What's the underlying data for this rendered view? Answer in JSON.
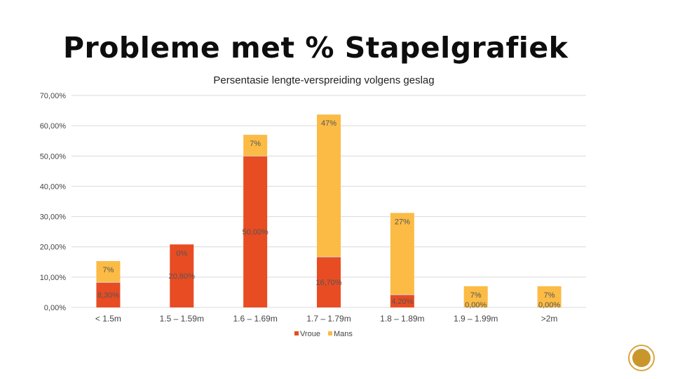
{
  "slide": {
    "title": "Probleme met % Stapelgrafiek"
  },
  "chart_data": {
    "type": "bar",
    "stacked": true,
    "title": "Persentasie lengte-verspreiding volgens geslag",
    "xlabel": "",
    "ylabel": "",
    "categories": [
      "< 1.5m",
      "1.5 – 1.59m",
      "1.6 – 1.69m",
      "1.7 – 1.79m",
      "1.8 – 1.89m",
      "1.9 – 1.99m",
      ">2m"
    ],
    "yticks": [
      "0,00%",
      "10,00%",
      "20,00%",
      "30,00%",
      "40,00%",
      "50,00%",
      "60,00%",
      "70,00%"
    ],
    "ylim": [
      0,
      70
    ],
    "grid": true,
    "legend_position": "bottom",
    "series": [
      {
        "name": "Vroue",
        "color": "#e84c22",
        "values": [
          8.3,
          20.8,
          50.0,
          16.7,
          4.2,
          0,
          0
        ],
        "labels": [
          "8,30%",
          "20,80%",
          "50,00%",
          "16,70%",
          "4,20%",
          "0,00%",
          "0,00%"
        ]
      },
      {
        "name": "Mans",
        "color": "#fbbb45",
        "values": [
          7,
          0,
          7,
          47,
          27,
          7,
          7
        ],
        "labels": [
          "7%",
          "0%",
          "7%",
          "47%",
          "27%",
          "7%",
          "7%"
        ]
      }
    ]
  },
  "decor": {
    "badge_icon": "circle-badge-icon"
  }
}
